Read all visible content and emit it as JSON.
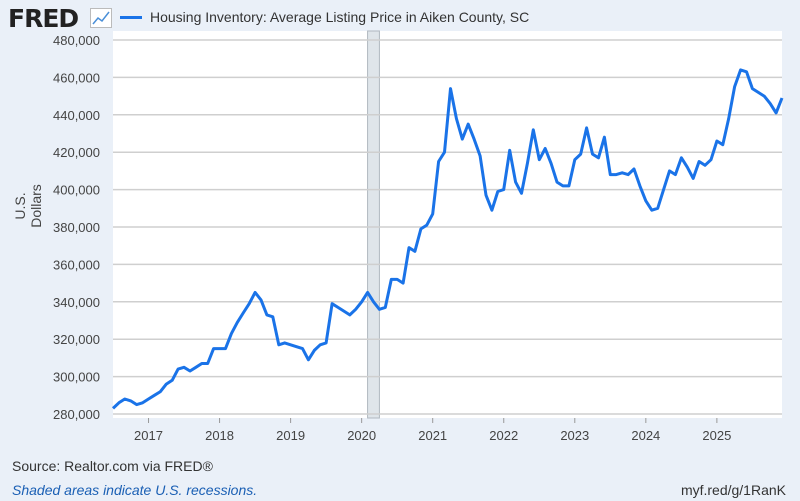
{
  "header": {
    "logo": "FRED",
    "logo_icon": "line-chart-icon"
  },
  "footer": {
    "source": "Source: Realtor.com via FRED®",
    "recession_note": "Shaded areas indicate U.S. recessions.",
    "url": "myf.red/g/1RanK"
  },
  "chart_data": {
    "type": "line",
    "title": "",
    "xlabel": "",
    "ylabel": "U.S. Dollars",
    "ylim": [
      280000,
      480000
    ],
    "yticks": [
      "280,000",
      "300,000",
      "320,000",
      "340,000",
      "360,000",
      "380,000",
      "400,000",
      "420,000",
      "440,000",
      "460,000",
      "480,000"
    ],
    "xticks": [
      "2017",
      "2018",
      "2019",
      "2020",
      "2021",
      "2022",
      "2023",
      "2024",
      "2025"
    ],
    "xstart": "2016-07",
    "frequency": "monthly",
    "grid": "horizontal",
    "legend_position": "top",
    "recessions": [
      [
        "2020-02",
        "2020-04"
      ]
    ],
    "colors": {
      "line": "#1a73e8",
      "recession": "#dfe5ea",
      "grid": "#cfcfcf"
    },
    "series": [
      {
        "name": "Housing Inventory: Average Listing Price in Aiken County, SC",
        "values": [
          283000,
          286000,
          288000,
          287000,
          285000,
          286000,
          288000,
          290000,
          292000,
          296000,
          298000,
          304000,
          305000,
          303000,
          305000,
          307000,
          307000,
          315000,
          315000,
          315000,
          323000,
          329000,
          334000,
          339000,
          345000,
          341000,
          333000,
          332000,
          317000,
          318000,
          317000,
          316000,
          315000,
          309000,
          314000,
          317000,
          318000,
          339000,
          337000,
          335000,
          333000,
          336000,
          340000,
          345000,
          340000,
          336000,
          337000,
          352000,
          352000,
          350000,
          369000,
          367000,
          379000,
          381000,
          387000,
          415000,
          420000,
          454000,
          438000,
          427000,
          435000,
          427000,
          418000,
          397000,
          389000,
          399000,
          400000,
          421000,
          404000,
          398000,
          414000,
          432000,
          416000,
          422000,
          414000,
          404000,
          402000,
          402000,
          416000,
          419000,
          433000,
          419000,
          417000,
          428000,
          408000,
          408000,
          409000,
          408000,
          411000,
          402000,
          394000,
          389000,
          390000,
          400000,
          410000,
          408000,
          417000,
          412000,
          406000,
          415000,
          413000,
          416000,
          426000,
          424000,
          438000,
          455000,
          464000,
          463000,
          454000,
          452000,
          450000,
          446000,
          441000,
          449000
        ]
      }
    ]
  }
}
